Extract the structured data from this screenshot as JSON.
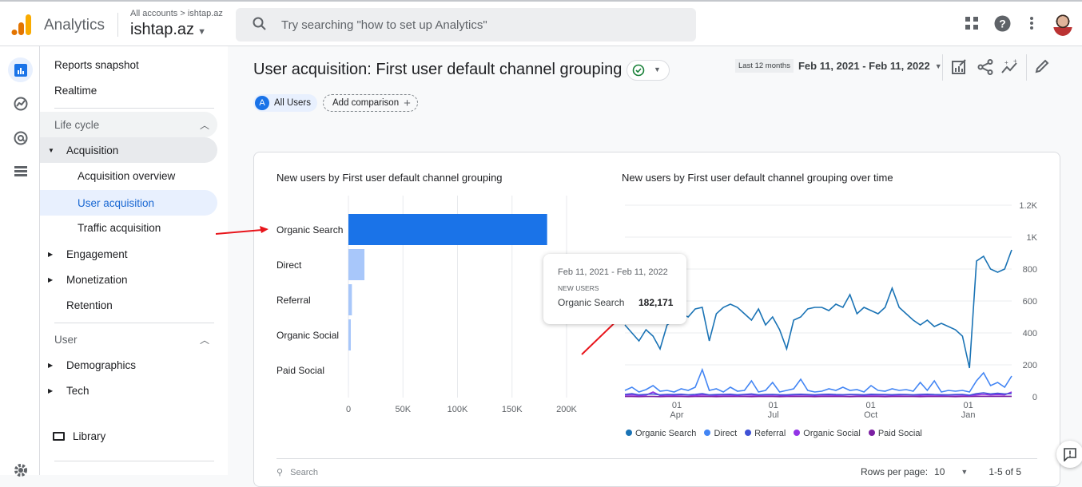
{
  "header": {
    "app_name": "Analytics",
    "breadcrumb": "All accounts > ishtap.az",
    "property": "ishtap.az",
    "search_placeholder": "Try searching \"how to set up Analytics\""
  },
  "sidebar": {
    "items": [
      {
        "label": "Reports snapshot"
      },
      {
        "label": "Realtime"
      },
      {
        "label": "Life cycle"
      },
      {
        "label": "Acquisition"
      },
      {
        "label": "Acquisition overview"
      },
      {
        "label": "User acquisition"
      },
      {
        "label": "Traffic acquisition"
      },
      {
        "label": "Engagement"
      },
      {
        "label": "Monetization"
      },
      {
        "label": "Retention"
      },
      {
        "label": "User"
      },
      {
        "label": "Demographics"
      },
      {
        "label": "Tech"
      },
      {
        "label": "Library"
      }
    ]
  },
  "page": {
    "title": "User acquisition: First user default channel grouping",
    "segment_letter": "A",
    "segment": "All Users",
    "add_comparison": "Add comparison",
    "date_preset": "Last 12 months",
    "date_range": "Feb 11, 2021 - Feb 11, 2022"
  },
  "tooltip": {
    "date": "Feb 11, 2021 - Feb 11, 2022",
    "metric": "NEW USERS",
    "channel": "Organic Search",
    "value": "182,171"
  },
  "table": {
    "search_placeholder": "Search",
    "rows_per_page_label": "Rows per page:",
    "rows_per_page": "10",
    "pagination": "1-5 of 5"
  },
  "colors": {
    "accent": "#1a73e8",
    "bar_light": "#a8c7fa",
    "annotation_arrow": "#e8151b"
  },
  "chart_data": [
    {
      "type": "bar",
      "title": "New users by First user default channel grouping",
      "orientation": "horizontal",
      "categories": [
        "Organic Search",
        "Direct",
        "Referral",
        "Organic Social",
        "Paid Social"
      ],
      "values": [
        182171,
        14700,
        3200,
        2200,
        50
      ],
      "xlim": [
        0,
        200000
      ],
      "xticks": [
        "0",
        "50K",
        "100K",
        "150K",
        "200K"
      ],
      "grid": true
    },
    {
      "type": "line",
      "title": "New users by First user default channel grouping over time",
      "xlim": [
        "2021-02-11",
        "2022-02-11"
      ],
      "ylim": [
        0,
        1200
      ],
      "xticks": [
        {
          "date": "2021-04-01",
          "label": [
            "01",
            "Apr"
          ]
        },
        {
          "date": "2021-07-01",
          "label": [
            "01",
            "Jul"
          ]
        },
        {
          "date": "2021-10-01",
          "label": [
            "01",
            "Oct"
          ]
        },
        {
          "date": "2022-01-01",
          "label": [
            "01",
            "Jan"
          ]
        }
      ],
      "yticks": [
        "0",
        "200",
        "400",
        "600",
        "800",
        "1K",
        "1.2K"
      ],
      "y_axis_side": "right",
      "grid": true,
      "legend": "bottom",
      "series": [
        {
          "name": "Organic Search",
          "color": "#1a73b5",
          "values": [
            450,
            400,
            350,
            420,
            380,
            300,
            450,
            480,
            520,
            500,
            550,
            560,
            350,
            520,
            560,
            580,
            560,
            520,
            480,
            550,
            450,
            500,
            420,
            300,
            480,
            500,
            550,
            560,
            560,
            540,
            580,
            560,
            640,
            520,
            560,
            540,
            520,
            560,
            680,
            560,
            520,
            480,
            450,
            480,
            440,
            460,
            440,
            420,
            380,
            180,
            850,
            880,
            800,
            780,
            800,
            920
          ]
        },
        {
          "name": "Direct",
          "color": "#4285f4",
          "values": [
            40,
            60,
            30,
            45,
            70,
            35,
            40,
            30,
            50,
            40,
            60,
            170,
            40,
            50,
            30,
            60,
            35,
            40,
            100,
            30,
            40,
            90,
            30,
            40,
            50,
            110,
            40,
            30,
            35,
            50,
            40,
            60,
            40,
            45,
            30,
            70,
            40,
            35,
            50,
            40,
            45,
            35,
            90,
            40,
            100,
            30,
            40,
            35,
            40,
            30,
            100,
            150,
            70,
            90,
            60,
            130
          ]
        },
        {
          "name": "Referral",
          "color": "#3f51d6",
          "values": [
            15,
            20,
            12,
            15,
            18,
            12,
            15,
            14,
            16,
            12,
            15,
            20,
            12,
            14,
            15,
            16,
            12,
            15,
            18,
            12,
            14,
            15,
            13,
            12,
            15,
            16,
            14,
            12,
            15,
            16,
            14,
            13,
            15,
            14,
            12,
            16,
            15,
            14,
            13,
            15,
            14,
            12,
            15,
            16,
            14,
            13,
            12,
            14,
            15,
            10,
            20,
            25,
            18,
            22,
            18,
            20
          ]
        },
        {
          "name": "Organic Social",
          "color": "#9334e6",
          "values": [
            10,
            12,
            8,
            10,
            30,
            8,
            10,
            9,
            12,
            10,
            8,
            12,
            10,
            9,
            11,
            10,
            8,
            12,
            10,
            9,
            10,
            11,
            9,
            8,
            10,
            12,
            10,
            9,
            10,
            11,
            9,
            10,
            12,
            10,
            9,
            10,
            11,
            10,
            9,
            10,
            12,
            10,
            9,
            11,
            10,
            9,
            10,
            11,
            10,
            8,
            12,
            15,
            12,
            14,
            12,
            30
          ]
        },
        {
          "name": "Paid Social",
          "color": "#7b1fa2",
          "values": [
            2,
            2,
            1,
            2,
            2,
            1,
            2,
            2,
            2,
            1,
            2,
            2,
            2,
            1,
            2,
            2,
            2,
            2,
            1,
            2,
            2,
            2,
            1,
            2,
            2,
            2,
            2,
            1,
            2,
            2,
            2,
            2,
            1,
            2,
            2,
            2,
            2,
            1,
            2,
            2,
            2,
            2,
            1,
            2,
            2,
            2,
            2,
            1,
            2,
            2,
            3,
            3,
            3,
            3,
            3,
            3
          ]
        }
      ]
    }
  ]
}
